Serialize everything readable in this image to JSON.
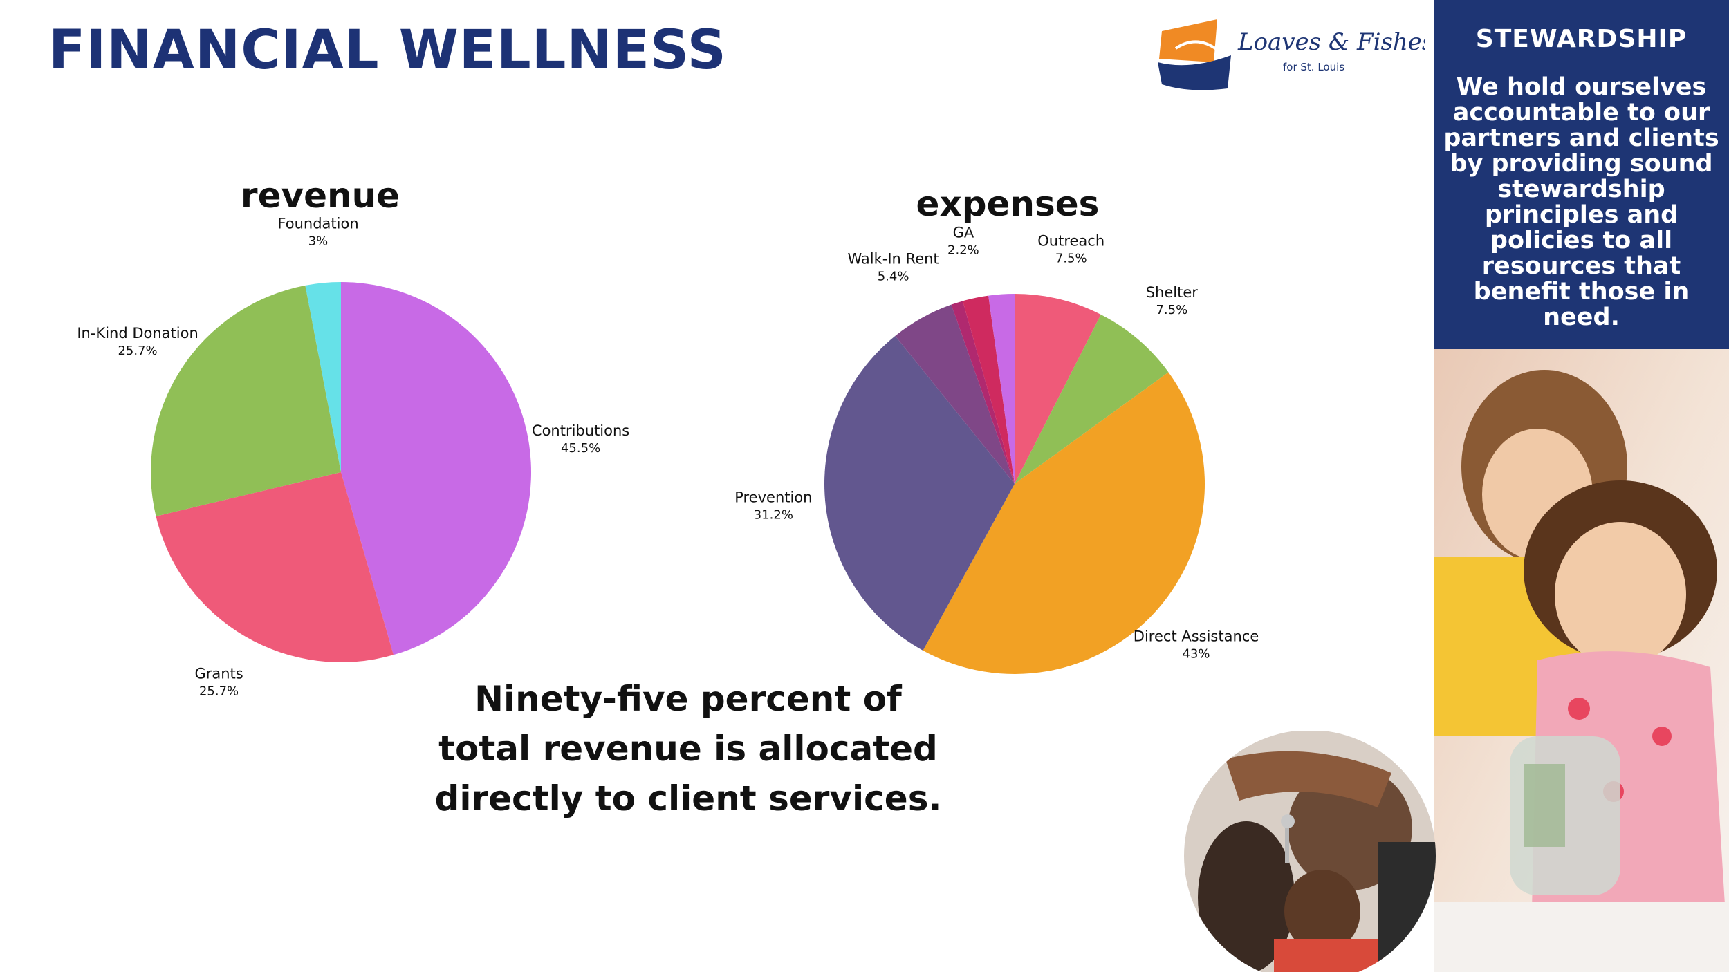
{
  "header": {
    "title": "FINANCIAL WELLNESS"
  },
  "logo": {
    "text": "Loaves & Fishes",
    "subtext": "for St. Louis"
  },
  "sidebar": {
    "heading": "STEWARDSHIP",
    "text": "We hold ourselves accountable to our partners and clients by providing sound stewardship principles and policies to all resources that benefit those in need."
  },
  "statement": {
    "lines": [
      "Ninety-five percent of",
      "total revenue is allocated",
      "directly to client services."
    ]
  },
  "colors": {
    "brand_navy": "#1e3574",
    "purple": "#c86ae6",
    "pink": "#ef5a79",
    "green": "#90bf56",
    "cyan": "#66e1e8",
    "orange": "#f2a124",
    "slate": "#62578f",
    "plum": "#7f4787",
    "magenta": "#b0296f",
    "crimson": "#cf2a5f"
  },
  "chart_data": [
    {
      "type": "pie",
      "title": "revenue",
      "slices": [
        {
          "label": "Contributions",
          "value": 45.5,
          "display": "45.5%",
          "color": "#c86ae6"
        },
        {
          "label": "Grants",
          "value": 25.7,
          "display": "25.7%",
          "color": "#ef5a79"
        },
        {
          "label": "In-Kind Donation",
          "value": 25.7,
          "display": "25.7%",
          "color": "#90bf56"
        },
        {
          "label": "Foundation",
          "value": 3,
          "display": "3%",
          "color": "#66e1e8"
        }
      ]
    },
    {
      "type": "pie",
      "title": "expenses",
      "slices": [
        {
          "label": "Outreach",
          "value": 7.5,
          "display": "7.5%",
          "color": "#ef5a79"
        },
        {
          "label": "Shelter",
          "value": 7.5,
          "display": "7.5%",
          "color": "#90bf56"
        },
        {
          "label": "Direct Assistance",
          "value": 43,
          "display": "43%",
          "color": "#f2a124"
        },
        {
          "label": "Prevention",
          "value": 31.2,
          "display": "31.2%",
          "color": "#62578f"
        },
        {
          "label": "Walk-In Rent",
          "value": 5.4,
          "display": "5.4%",
          "color": "#7f4787"
        },
        {
          "label": "",
          "value": 1.0,
          "display": "",
          "color": "#b0296f"
        },
        {
          "label": "GA",
          "value": 2.2,
          "display": "2.2%",
          "color": "#cf2a5f"
        },
        {
          "label": "",
          "value": 2.2,
          "display": "",
          "color": "#c86ae6"
        }
      ]
    }
  ]
}
